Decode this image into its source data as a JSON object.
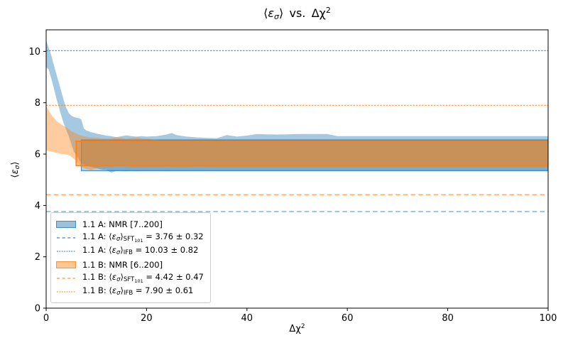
{
  "figure": {
    "title": {
      "p1": "⟨",
      "eps": "ε",
      "sigma": "σ",
      "p2": "⟩",
      "p3": "  vs.  Δχ",
      "sup": "2"
    },
    "xlabel": {
      "p1": "Δχ",
      "sup": "2"
    },
    "ylabel": {
      "p1": "⟨",
      "eps": "ε",
      "sigma": "σ",
      "p2": "⟩"
    }
  },
  "colors": {
    "series_a_blue": "#1f77b4",
    "series_b_orange": "#ff7f0e",
    "spine": "#000000",
    "legend_border": "#cccccc"
  },
  "chart_data": {
    "type": "area",
    "title": "⟨ε_σ⟩ vs. Δχ²",
    "xlabel": "Δχ²",
    "ylabel": "⟨ε_σ⟩",
    "xlim": [
      0,
      100
    ],
    "ylim": [
      0,
      10.84
    ],
    "xticks": [
      0,
      20,
      40,
      60,
      80,
      100
    ],
    "yticks": [
      0,
      2,
      4,
      6,
      8,
      10
    ],
    "grid": false,
    "legend_position": "lower left",
    "bands": [
      {
        "name": "1.1 A running NMR band",
        "color": "#1f77b4",
        "x": [
          0,
          0.5,
          1,
          1.5,
          2,
          2.5,
          3,
          3.5,
          4,
          4.5,
          5,
          5.5,
          6,
          6.5,
          7,
          7.5,
          8,
          9,
          10,
          11,
          12,
          13,
          14,
          15,
          16,
          17,
          18,
          19,
          20,
          22,
          24,
          25,
          26,
          28,
          30,
          32,
          34,
          36,
          38,
          40,
          42,
          44,
          46,
          48,
          50,
          53,
          56,
          58,
          60,
          65,
          70,
          75,
          80,
          85,
          90,
          95,
          100
        ],
        "upper": [
          10.42,
          10.15,
          9.85,
          9.5,
          9.15,
          8.8,
          8.45,
          8.1,
          7.8,
          7.6,
          7.5,
          7.45,
          7.42,
          7.4,
          7.35,
          7.0,
          6.92,
          6.85,
          6.8,
          6.76,
          6.72,
          6.7,
          6.66,
          6.7,
          6.73,
          6.7,
          6.68,
          6.7,
          6.68,
          6.7,
          6.76,
          6.82,
          6.74,
          6.68,
          6.65,
          6.63,
          6.62,
          6.74,
          6.68,
          6.72,
          6.78,
          6.77,
          6.76,
          6.77,
          6.78,
          6.78,
          6.78,
          6.7,
          6.7,
          6.7,
          6.7,
          6.7,
          6.7,
          6.7,
          6.7,
          6.7,
          6.7
        ],
        "lower": [
          9.38,
          9.3,
          8.95,
          8.6,
          8.2,
          7.85,
          7.5,
          7.2,
          6.95,
          6.7,
          6.4,
          6.1,
          5.95,
          5.8,
          5.65,
          5.6,
          5.55,
          5.5,
          5.45,
          5.4,
          5.38,
          5.28,
          5.35,
          5.35,
          5.33,
          5.35,
          5.34,
          5.35,
          5.35,
          5.35,
          5.34,
          5.35,
          5.35,
          5.35,
          5.35,
          5.35,
          5.35,
          5.35,
          5.35,
          5.35,
          5.35,
          5.35,
          5.35,
          5.35,
          5.35,
          5.35,
          5.35,
          5.35,
          5.35,
          5.35,
          5.35,
          5.35,
          5.35,
          5.35,
          5.35,
          5.35,
          5.35
        ]
      },
      {
        "name": "1.1 B running NMR band",
        "color": "#ff7f0e",
        "x": [
          0,
          0.5,
          1,
          1.5,
          2,
          2.5,
          3,
          3.5,
          4,
          4.5,
          5,
          5.5,
          6,
          6.5,
          7,
          7.5,
          8,
          9,
          10,
          11,
          12,
          13,
          14,
          15,
          16,
          17,
          18,
          19,
          20,
          22,
          24,
          26,
          28,
          30,
          35,
          40,
          50,
          60,
          70,
          80,
          90,
          100
        ],
        "upper": [
          7.88,
          7.7,
          7.55,
          7.42,
          7.3,
          7.22,
          7.15,
          7.1,
          7.05,
          6.97,
          6.9,
          6.85,
          6.8,
          6.76,
          6.72,
          6.7,
          6.67,
          6.65,
          6.64,
          6.62,
          6.6,
          6.62,
          6.66,
          6.63,
          6.6,
          6.63,
          6.65,
          6.62,
          6.6,
          6.55,
          6.52,
          6.5,
          6.53,
          6.51,
          6.5,
          6.5,
          6.5,
          6.5,
          6.5,
          6.5,
          6.5,
          6.5
        ],
        "lower": [
          6.15,
          6.12,
          6.1,
          6.08,
          6.05,
          6.03,
          6.0,
          6.0,
          5.98,
          5.96,
          5.9,
          5.82,
          5.72,
          5.62,
          5.52,
          5.46,
          5.42,
          5.38,
          5.44,
          5.5,
          5.52,
          5.5,
          5.54,
          5.55,
          5.52,
          5.5,
          5.5,
          5.5,
          5.51,
          5.5,
          5.51,
          5.5,
          5.5,
          5.51,
          5.5,
          5.5,
          5.5,
          5.5,
          5.5,
          5.5,
          5.5,
          5.5
        ]
      }
    ],
    "rects": [
      {
        "name": "1.1 A: NMR [7..200]",
        "color": "#1f77b4",
        "x0": 7,
        "x1": 100,
        "y0": 5.35,
        "y1": 6.55,
        "stroke_width": 1.3,
        "stroke_opacity": 0.75
      },
      {
        "name": "1.1 B: NMR [6..200]",
        "color": "#ff7f0e",
        "x0": 6,
        "x1": 100,
        "y0": 5.55,
        "y1": 6.5,
        "stroke_width": 2.0,
        "stroke_opacity": 0.9
      }
    ],
    "hlines": [
      {
        "label": "1.1 A: ⟨ε_σ⟩_SFT101 = 3.76 ± 0.32",
        "y": 3.76,
        "color": "#1f77b4",
        "style": "dashed"
      },
      {
        "label": "1.1 A: ⟨ε_σ⟩_IFB = 10.03 ± 0.82",
        "y": 10.03,
        "color": "#1f77b4",
        "style": "dotted"
      },
      {
        "label": "1.1 B: ⟨ε_σ⟩_SFT101 = 4.42 ± 0.47",
        "y": 4.42,
        "color": "#ff7f0e",
        "style": "dashed"
      },
      {
        "label": "1.1 B: ⟨ε_σ⟩_IFB = 7.90 ± 0.61",
        "y": 7.9,
        "color": "#ff7f0e",
        "style": "dotted"
      }
    ]
  },
  "legend": {
    "rows": [
      {
        "name": "1.1 A: ",
        "plain": "NMR [7..200]",
        "swatch": {
          "kind": "patch",
          "color": "#1f77b4"
        }
      },
      {
        "name": "1.1 A: ",
        "bra": "⟨",
        "eps": "ε",
        "sigma": "σ",
        "ket": "⟩",
        "sub": "SFT",
        "subsub": "101",
        "val": " = 3.76 ± 0.32",
        "swatch": {
          "kind": "dash",
          "color": "#1f77b4"
        }
      },
      {
        "name": "1.1 A: ",
        "bra": "⟨",
        "eps": "ε",
        "sigma": "σ",
        "ket": "⟩",
        "sub": "IFB",
        "val": " = 10.03 ± 0.82",
        "swatch": {
          "kind": "dot",
          "color": "#1f77b4"
        }
      },
      {
        "name": "1.1 B: ",
        "plain": "NMR [6..200]",
        "swatch": {
          "kind": "patch",
          "color": "#ff7f0e"
        }
      },
      {
        "name": "1.1 B: ",
        "bra": "⟨",
        "eps": "ε",
        "sigma": "σ",
        "ket": "⟩",
        "sub": "SFT",
        "subsub": "101",
        "val": " = 4.42 ± 0.47",
        "swatch": {
          "kind": "dash",
          "color": "#ff7f0e"
        }
      },
      {
        "name": "1.1 B: ",
        "bra": "⟨",
        "eps": "ε",
        "sigma": "σ",
        "ket": "⟩",
        "sub": "IFB",
        "val": " = 7.90 ± 0.61",
        "swatch": {
          "kind": "dot",
          "color": "#ff7f0e"
        }
      }
    ]
  }
}
